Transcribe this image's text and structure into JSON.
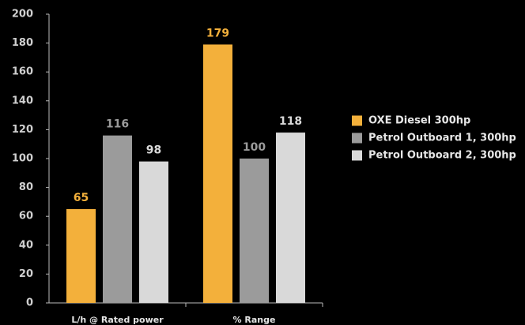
{
  "chart_data": {
    "type": "bar",
    "categories": [
      "L/h @ Rated power",
      "% Range"
    ],
    "series": [
      {
        "name": "OXE Diesel 300hp",
        "color": "#f3b03b",
        "values": [
          65,
          179
        ]
      },
      {
        "name": "Petrol Outboard 1, 300hp",
        "color": "#9b9b9b",
        "values": [
          116,
          100
        ]
      },
      {
        "name": "Petrol Outboard 2, 300hp",
        "color": "#d9d9d9",
        "values": [
          98,
          118
        ]
      }
    ],
    "ylim": [
      0,
      200
    ],
    "yticks": [
      0,
      20,
      40,
      60,
      80,
      100,
      120,
      140,
      160,
      180,
      200
    ],
    "grid": false,
    "legend": "right"
  }
}
